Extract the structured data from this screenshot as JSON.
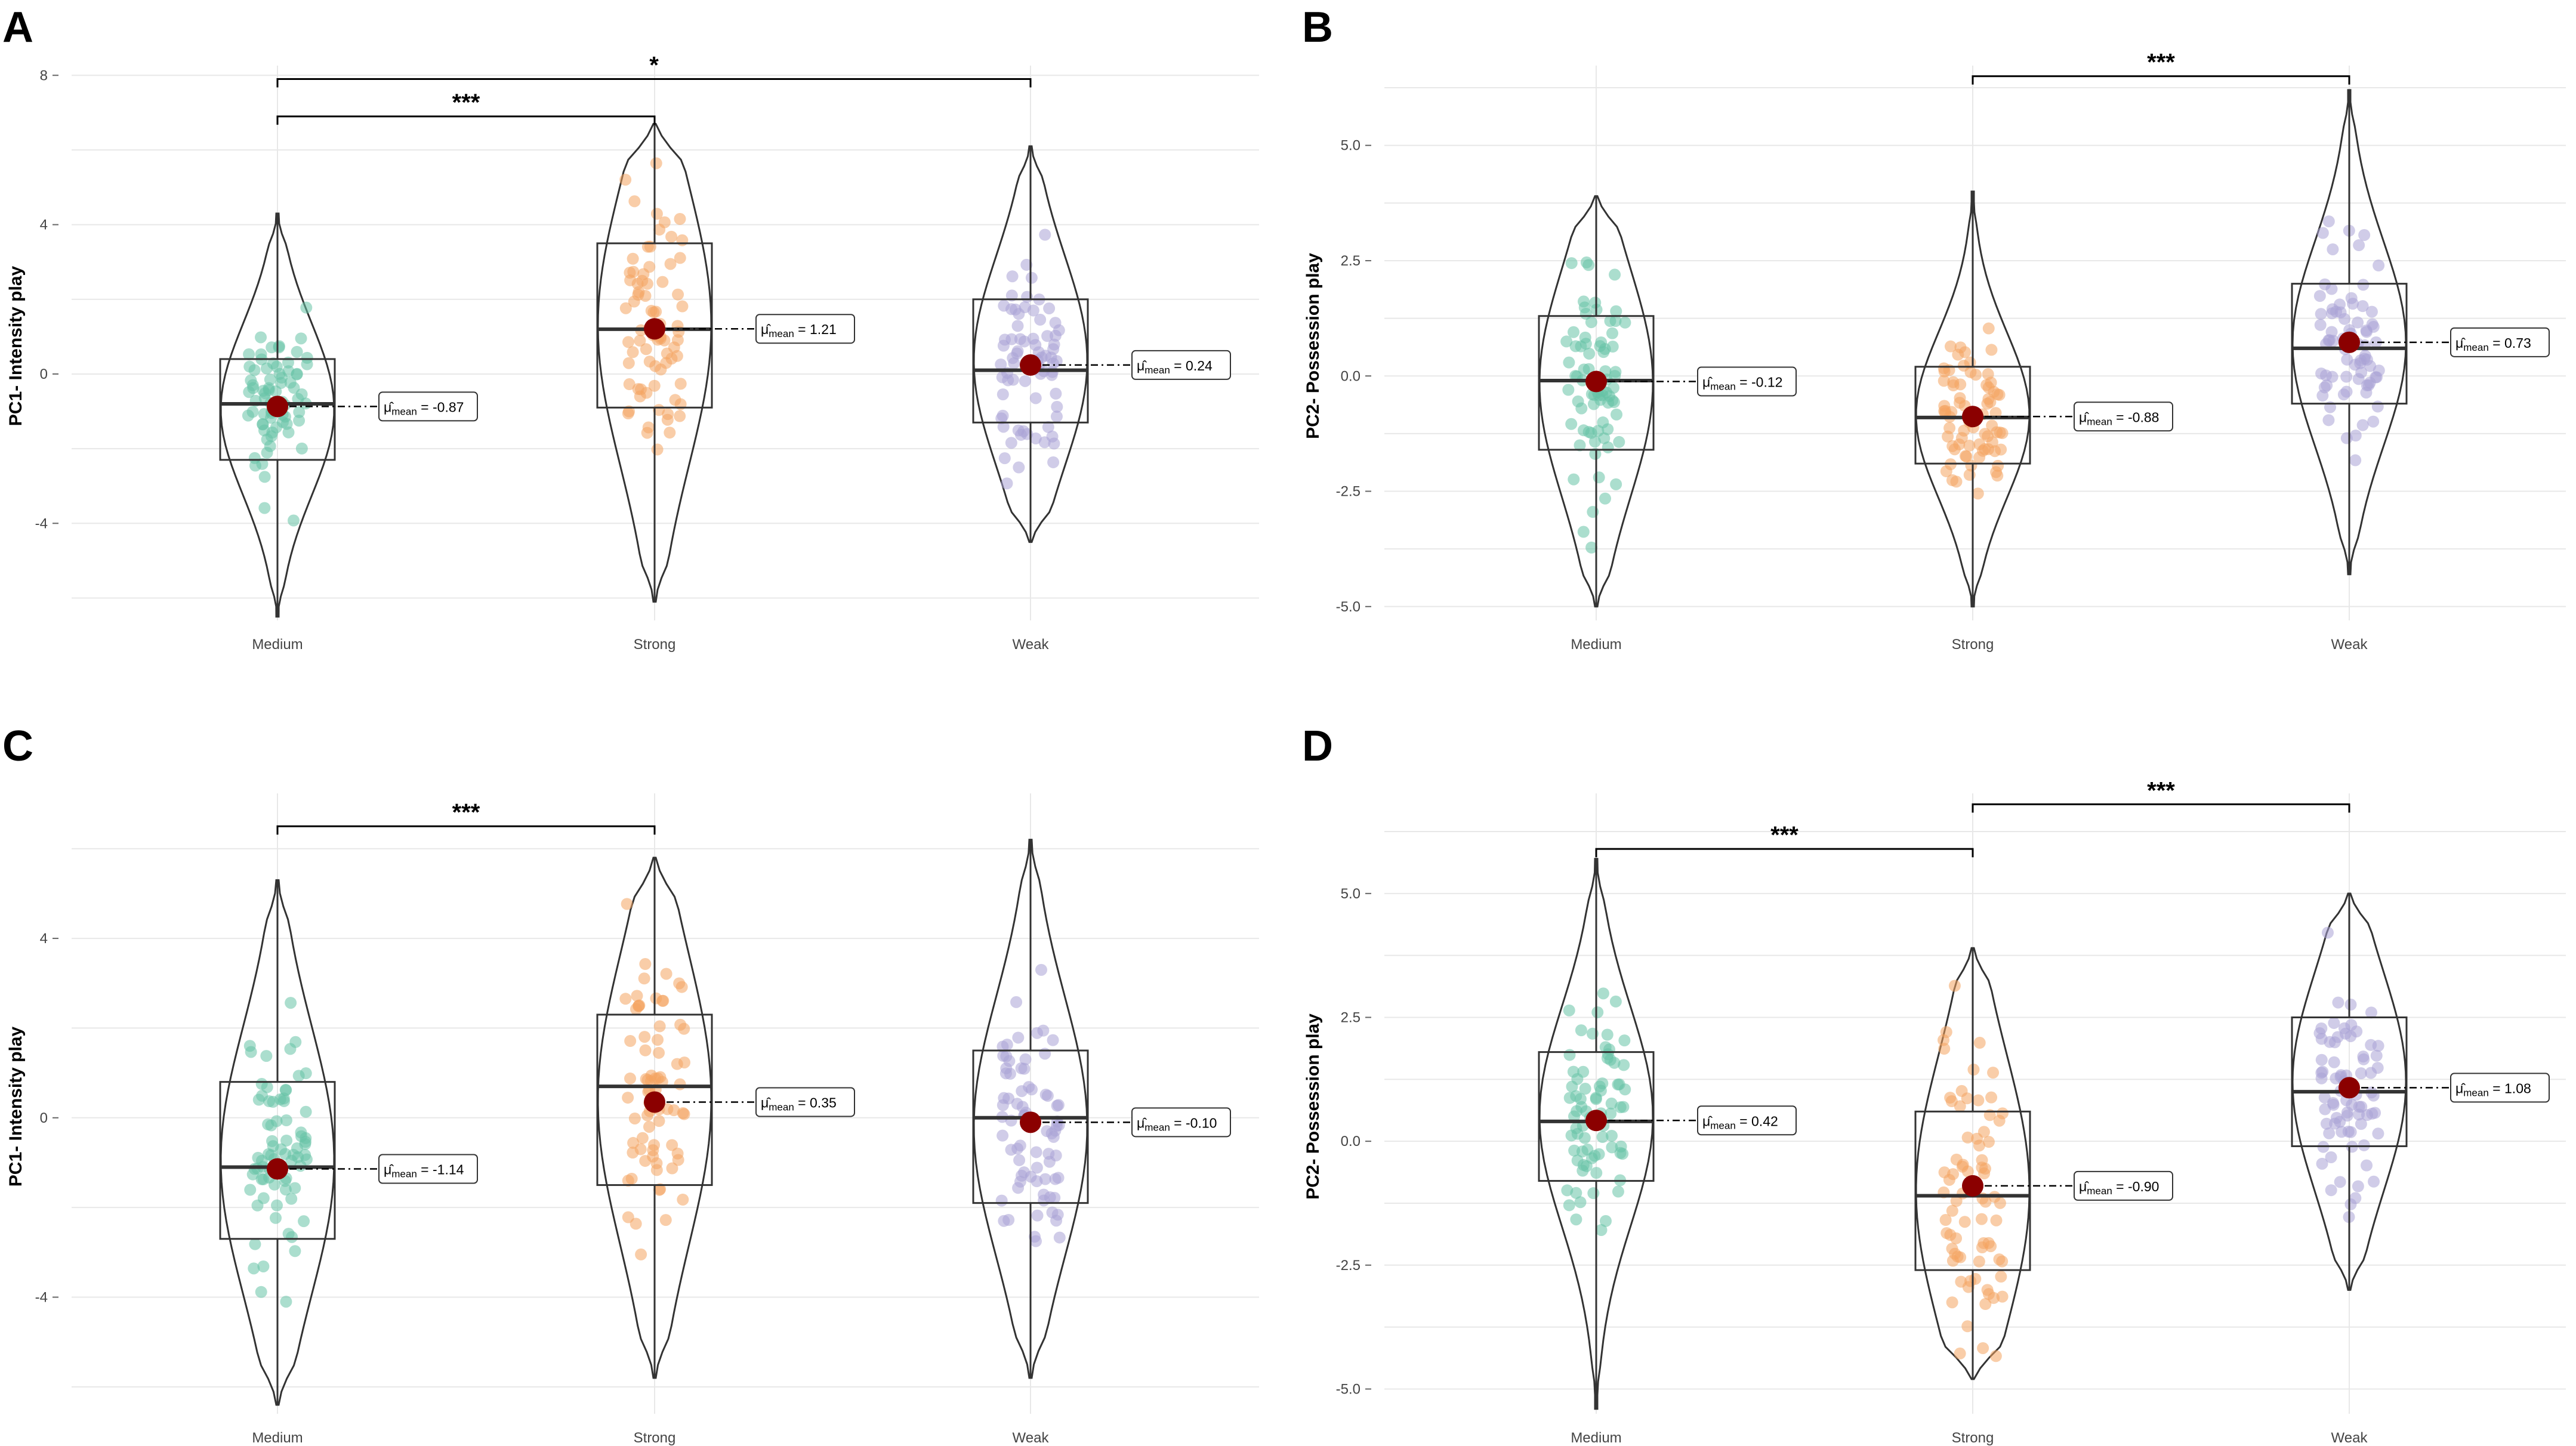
{
  "figure": {
    "colors": {
      "medium": "#66c2a5",
      "strong": "#f4a460",
      "weak": "#a9a3d6",
      "mean_point": "#8b0000",
      "outline": "#333333",
      "grid": "#e8e8e8"
    },
    "mean_symbol": "μ̂",
    "mean_subscript": "mean"
  },
  "chart_data": [
    {
      "panel": "A",
      "type": "violin",
      "ylabel": "PC1- Intensity play",
      "categories": [
        "Medium",
        "Strong",
        "Weak"
      ],
      "yticks": [
        -4,
        0,
        4,
        8
      ],
      "tick_labels": [
        "-4",
        "0",
        "4",
        "8"
      ],
      "ylim": [
        -6.6,
        8.1
      ],
      "groups": [
        {
          "name": "Medium",
          "min": -6.5,
          "q1": -2.3,
          "median": -0.8,
          "q3": 0.4,
          "max": 4.3,
          "mean": -0.87,
          "mean_label": "= -0.87"
        },
        {
          "name": "Strong",
          "min": -6.1,
          "q1": -0.9,
          "median": 1.2,
          "q3": 3.5,
          "max": 6.7,
          "mean": 1.21,
          "mean_label": "= 1.21"
        },
        {
          "name": "Weak",
          "min": -4.5,
          "q1": -1.3,
          "median": 0.1,
          "q3": 2.0,
          "max": 6.1,
          "mean": 0.24,
          "mean_label": "= 0.24"
        }
      ],
      "comparisons": [
        {
          "from": "Medium",
          "to": "Strong",
          "y": 6.9,
          "label": "***"
        },
        {
          "from": "Medium",
          "to": "Weak",
          "y": 7.9,
          "label": "*"
        }
      ]
    },
    {
      "panel": "B",
      "type": "violin",
      "ylabel": "PC2- Possession play",
      "categories": [
        "Medium",
        "Strong",
        "Weak"
      ],
      "yticks": [
        -5,
        -2.5,
        0,
        2.5,
        5
      ],
      "tick_labels": [
        "-5.0",
        "-2.5",
        "0.0",
        "2.5",
        "5.0"
      ],
      "ylim": [
        -5.3,
        6.6
      ],
      "groups": [
        {
          "name": "Medium",
          "min": -5.0,
          "q1": -1.6,
          "median": -0.1,
          "q3": 1.3,
          "max": 3.9,
          "mean": -0.12,
          "mean_label": "= -0.12"
        },
        {
          "name": "Strong",
          "min": -5.0,
          "q1": -1.9,
          "median": -0.9,
          "q3": 0.2,
          "max": 4.0,
          "mean": -0.88,
          "mean_label": "= -0.88"
        },
        {
          "name": "Weak",
          "min": -4.3,
          "q1": -0.6,
          "median": 0.6,
          "q3": 2.0,
          "max": 6.2,
          "mean": 0.73,
          "mean_label": "= 0.73"
        }
      ],
      "comparisons": [
        {
          "from": "Strong",
          "to": "Weak",
          "y": 6.5,
          "label": "***"
        }
      ]
    },
    {
      "panel": "C",
      "type": "violin",
      "ylabel": "PC1- Intensity play",
      "categories": [
        "Medium",
        "Strong",
        "Weak"
      ],
      "yticks": [
        -4,
        0,
        4
      ],
      "tick_labels": [
        "-4",
        "0",
        "4"
      ],
      "ylim": [
        -6.6,
        7.1
      ],
      "groups": [
        {
          "name": "Medium",
          "min": -6.4,
          "q1": -2.7,
          "median": -1.1,
          "q3": 0.8,
          "max": 5.3,
          "mean": -1.14,
          "mean_label": "= -1.14"
        },
        {
          "name": "Strong",
          "min": -5.8,
          "q1": -1.5,
          "median": 0.7,
          "q3": 2.3,
          "max": 5.8,
          "mean": 0.35,
          "mean_label": "= 0.35"
        },
        {
          "name": "Weak",
          "min": -5.8,
          "q1": -1.9,
          "median": 0.0,
          "q3": 1.5,
          "max": 6.2,
          "mean": -0.1,
          "mean_label": "= -0.10"
        }
      ],
      "comparisons": [
        {
          "from": "Medium",
          "to": "Strong",
          "y": 6.5,
          "label": "***"
        }
      ]
    },
    {
      "panel": "D",
      "type": "violin",
      "ylabel": "PC2- Possession play",
      "categories": [
        "Medium",
        "Strong",
        "Weak"
      ],
      "yticks": [
        -5,
        -2.5,
        0,
        2.5,
        5
      ],
      "tick_labels": [
        "-5.0",
        "-2.5",
        "0.0",
        "2.5",
        "5.0"
      ],
      "ylim": [
        -5.5,
        6.9
      ],
      "groups": [
        {
          "name": "Medium",
          "min": -5.4,
          "q1": -0.8,
          "median": 0.4,
          "q3": 1.8,
          "max": 5.7,
          "mean": 0.42,
          "mean_label": "= 0.42"
        },
        {
          "name": "Strong",
          "min": -4.8,
          "q1": -2.6,
          "median": -1.1,
          "q3": 0.6,
          "max": 3.9,
          "mean": -0.9,
          "mean_label": "= -0.90"
        },
        {
          "name": "Weak",
          "min": -3.0,
          "q1": -0.1,
          "median": 1.0,
          "q3": 2.5,
          "max": 5.0,
          "mean": 1.08,
          "mean_label": "= 1.08"
        }
      ],
      "comparisons": [
        {
          "from": "Medium",
          "to": "Strong",
          "y": 5.9,
          "label": "***"
        },
        {
          "from": "Strong",
          "to": "Weak",
          "y": 6.8,
          "label": "***"
        }
      ]
    }
  ]
}
